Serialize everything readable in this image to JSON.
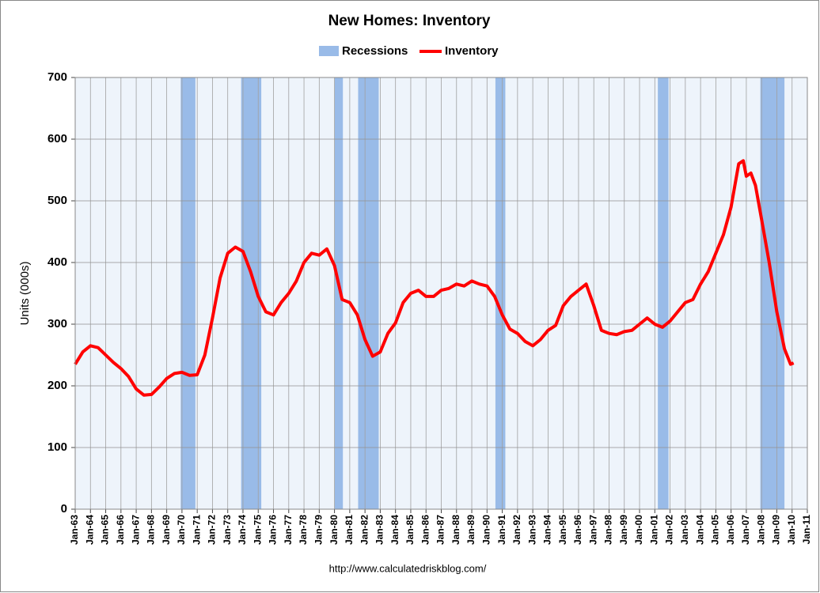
{
  "chart_data": {
    "type": "line",
    "title": "New Homes: Inventory",
    "y_label": "Units (000s)",
    "source": "http://www.calculatedriskblog.com/",
    "ylim": [
      0,
      700
    ],
    "yticks": [
      0,
      100,
      200,
      300,
      400,
      500,
      600,
      700
    ],
    "xlim": [
      1963,
      2011
    ],
    "xticks": [
      {
        "value": 1963,
        "label": "Jan-63"
      },
      {
        "value": 1964,
        "label": "Jan-64"
      },
      {
        "value": 1965,
        "label": "Jan-65"
      },
      {
        "value": 1966,
        "label": "Jan-66"
      },
      {
        "value": 1967,
        "label": "Jan-67"
      },
      {
        "value": 1968,
        "label": "Jan-68"
      },
      {
        "value": 1969,
        "label": "Jan-69"
      },
      {
        "value": 1970,
        "label": "Jan-70"
      },
      {
        "value": 1971,
        "label": "Jan-71"
      },
      {
        "value": 1972,
        "label": "Jan-72"
      },
      {
        "value": 1973,
        "label": "Jan-73"
      },
      {
        "value": 1974,
        "label": "Jan-74"
      },
      {
        "value": 1975,
        "label": "Jan-75"
      },
      {
        "value": 1976,
        "label": "Jan-76"
      },
      {
        "value": 1977,
        "label": "Jan-77"
      },
      {
        "value": 1978,
        "label": "Jan-78"
      },
      {
        "value": 1979,
        "label": "Jan-79"
      },
      {
        "value": 1980,
        "label": "Jan-80"
      },
      {
        "value": 1981,
        "label": "Jan-81"
      },
      {
        "value": 1982,
        "label": "Jan-82"
      },
      {
        "value": 1983,
        "label": "Jan-83"
      },
      {
        "value": 1984,
        "label": "Jan-84"
      },
      {
        "value": 1985,
        "label": "Jan-85"
      },
      {
        "value": 1986,
        "label": "Jan-86"
      },
      {
        "value": 1987,
        "label": "Jan-87"
      },
      {
        "value": 1988,
        "label": "Jan-88"
      },
      {
        "value": 1989,
        "label": "Jan-89"
      },
      {
        "value": 1990,
        "label": "Jan-90"
      },
      {
        "value": 1991,
        "label": "Jan-91"
      },
      {
        "value": 1992,
        "label": "Jan-92"
      },
      {
        "value": 1993,
        "label": "Jan-93"
      },
      {
        "value": 1994,
        "label": "Jan-94"
      },
      {
        "value": 1995,
        "label": "Jan-95"
      },
      {
        "value": 1996,
        "label": "Jan-96"
      },
      {
        "value": 1997,
        "label": "Jan-97"
      },
      {
        "value": 1998,
        "label": "Jan-98"
      },
      {
        "value": 1999,
        "label": "Jan-99"
      },
      {
        "value": 2000,
        "label": "Jan-00"
      },
      {
        "value": 2001,
        "label": "Jan-01"
      },
      {
        "value": 2002,
        "label": "Jan-02"
      },
      {
        "value": 2003,
        "label": "Jan-03"
      },
      {
        "value": 2004,
        "label": "Jan-04"
      },
      {
        "value": 2005,
        "label": "Jan-05"
      },
      {
        "value": 2006,
        "label": "Jan-06"
      },
      {
        "value": 2007,
        "label": "Jan-07"
      },
      {
        "value": 2008,
        "label": "Jan-08"
      },
      {
        "value": 2009,
        "label": "Jan-09"
      },
      {
        "value": 2010,
        "label": "Jan-10"
      },
      {
        "value": 2011,
        "label": "Jan-11"
      }
    ],
    "grid": true,
    "recessions": {
      "name": "Recessions",
      "color": "#99bbe8",
      "periods": [
        [
          1969.92,
          1970.88
        ],
        [
          1973.88,
          1975.2
        ],
        [
          1980.0,
          1980.55
        ],
        [
          1981.55,
          1982.9
        ],
        [
          1990.55,
          1991.2
        ],
        [
          2001.2,
          2001.9
        ],
        [
          2007.92,
          2009.5
        ]
      ]
    },
    "series": [
      {
        "name": "Inventory",
        "color": "#ff0000",
        "x": [
          1963.0,
          1963.5,
          1964.0,
          1964.5,
          1965.0,
          1965.5,
          1966.0,
          1966.5,
          1967.0,
          1967.5,
          1968.0,
          1968.5,
          1969.0,
          1969.5,
          1970.0,
          1970.5,
          1971.0,
          1971.5,
          1972.0,
          1972.5,
          1973.0,
          1973.5,
          1974.0,
          1974.5,
          1975.0,
          1975.5,
          1976.0,
          1976.5,
          1977.0,
          1977.5,
          1978.0,
          1978.5,
          1979.0,
          1979.5,
          1980.0,
          1980.5,
          1981.0,
          1981.5,
          1982.0,
          1982.5,
          1983.0,
          1983.5,
          1984.0,
          1984.5,
          1985.0,
          1985.5,
          1986.0,
          1986.5,
          1987.0,
          1987.5,
          1988.0,
          1988.5,
          1989.0,
          1989.5,
          1990.0,
          1990.5,
          1991.0,
          1991.5,
          1992.0,
          1992.5,
          1993.0,
          1993.5,
          1994.0,
          1994.5,
          1995.0,
          1995.5,
          1996.0,
          1996.5,
          1997.0,
          1997.5,
          1998.0,
          1998.5,
          1999.0,
          1999.5,
          2000.0,
          2000.5,
          2001.0,
          2001.5,
          2002.0,
          2002.5,
          2003.0,
          2003.5,
          2004.0,
          2004.5,
          2005.0,
          2005.5,
          2006.0,
          2006.5,
          2006.8,
          2007.0,
          2007.3,
          2007.6,
          2008.0,
          2008.5,
          2009.0,
          2009.5,
          2009.9,
          2010.1
        ],
        "values": [
          235,
          255,
          265,
          262,
          250,
          238,
          228,
          215,
          195,
          185,
          186,
          198,
          212,
          220,
          222,
          217,
          218,
          250,
          310,
          375,
          415,
          425,
          418,
          385,
          345,
          320,
          315,
          335,
          350,
          370,
          400,
          415,
          412,
          422,
          395,
          340,
          335,
          315,
          275,
          248,
          255,
          285,
          302,
          335,
          350,
          355,
          345,
          345,
          355,
          358,
          365,
          362,
          370,
          365,
          362,
          345,
          315,
          292,
          285,
          272,
          265,
          275,
          290,
          298,
          330,
          345,
          355,
          365,
          330,
          290,
          285,
          283,
          288,
          290,
          300,
          310,
          300,
          295,
          305,
          320,
          335,
          340,
          365,
          385,
          415,
          445,
          490,
          560,
          565,
          540,
          545,
          525,
          470,
          400,
          320,
          260,
          235,
          237
        ]
      }
    ]
  }
}
